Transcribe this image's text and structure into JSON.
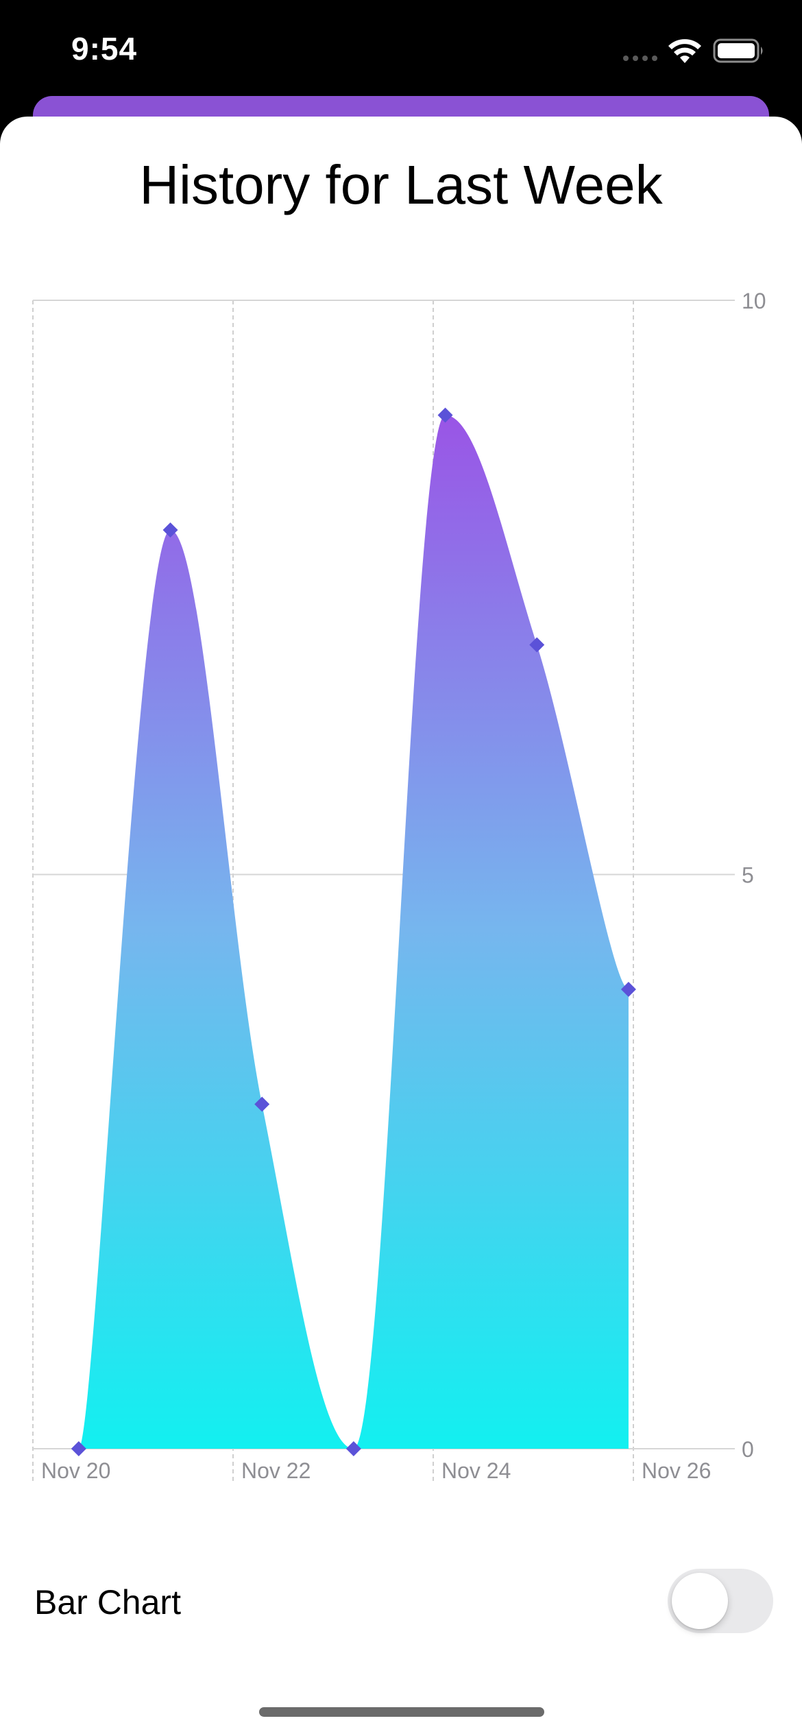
{
  "status_bar": {
    "time": "9:54"
  },
  "sheet": {
    "title": "History for Last Week"
  },
  "controls": {
    "bar_chart_label": "Bar Chart",
    "bar_chart_enabled": false
  },
  "colors": {
    "gradient_top": "#9a54e6",
    "gradient_mid": "#76b6ee",
    "gradient_bottom": "#12f0f0",
    "point_marker": "#5b52d8",
    "back_card": "#8a52d4"
  },
  "chart_data": {
    "type": "area",
    "interpolation": "smooth",
    "x": [
      "Nov 20",
      "Nov 21",
      "Nov 22",
      "Nov 23",
      "Nov 24",
      "Nov 25",
      "Nov 26"
    ],
    "values": [
      0,
      8,
      3,
      0,
      9,
      7,
      4
    ],
    "x_tick_labels": [
      "Nov 20",
      "Nov 22",
      "Nov 24",
      "Nov 26"
    ],
    "y_ticks": [
      0,
      5,
      10
    ],
    "ylim": [
      0,
      10
    ],
    "y_axis_side": "right",
    "grid": true,
    "markers": "diamond",
    "title": "",
    "xlabel": "",
    "ylabel": ""
  }
}
